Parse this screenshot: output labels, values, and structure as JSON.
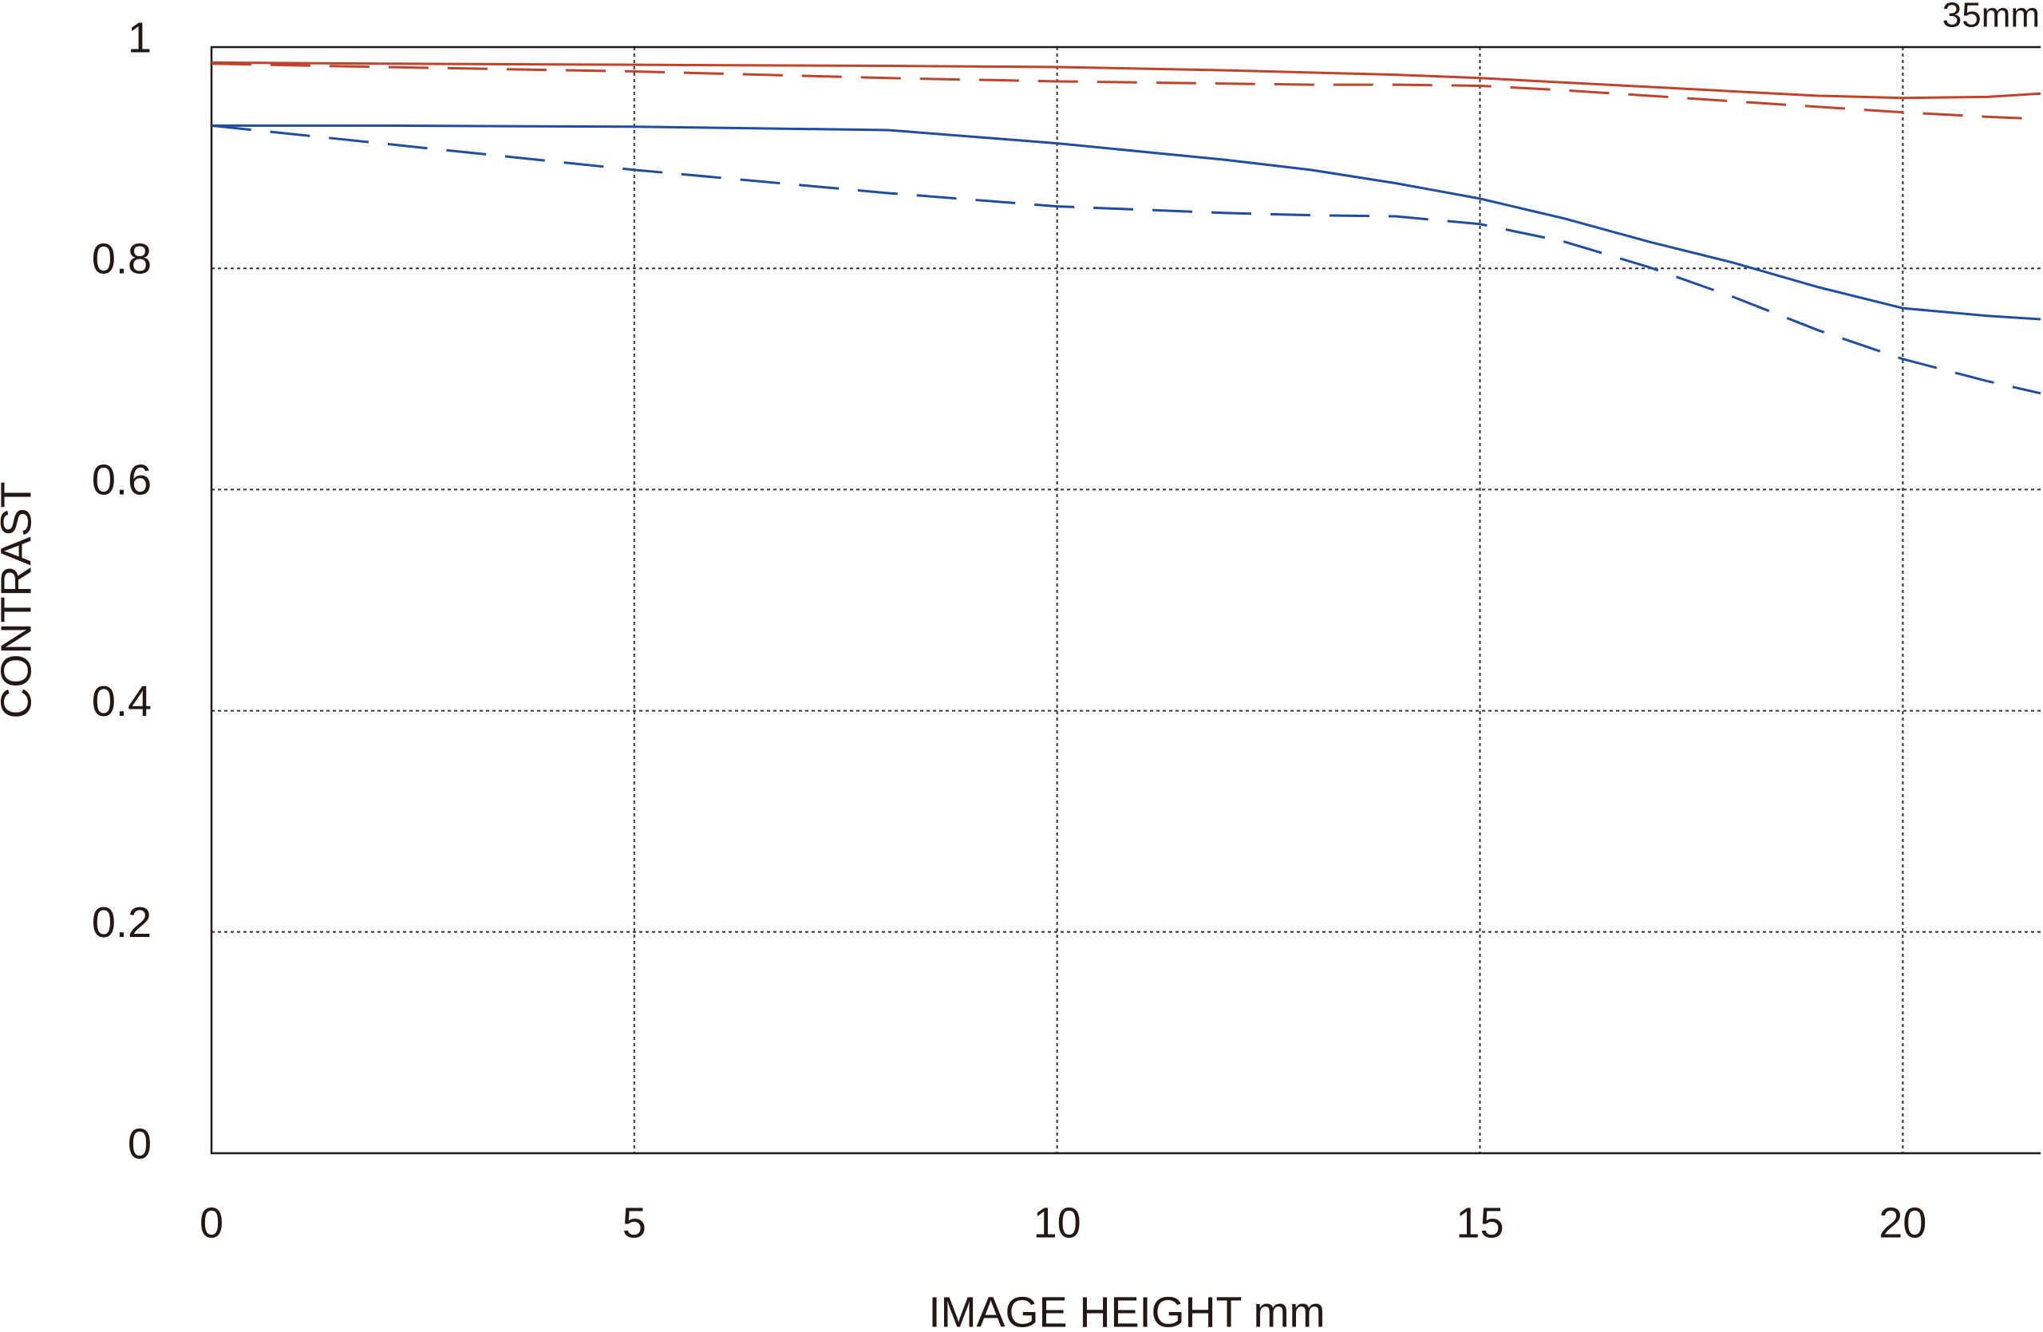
{
  "chart_data": {
    "type": "line",
    "annotation": "35mm",
    "x_label": "IMAGE HEIGHT  mm",
    "y_label": "CONTRAST",
    "x": [
      0,
      2,
      5,
      8,
      10,
      12,
      13,
      14,
      15,
      16,
      17,
      18,
      19,
      20,
      21,
      21.63
    ],
    "series": [
      {
        "color": "#c0432b",
        "style": "solid",
        "values": [
          0.986,
          0.985,
          0.984,
          0.983,
          0.982,
          0.979,
          0.977,
          0.975,
          0.972,
          0.968,
          0.964,
          0.96,
          0.956,
          0.954,
          0.955,
          0.958
        ]
      },
      {
        "color": "#c0432b",
        "style": "dashed",
        "values": [
          0.985,
          0.982,
          0.978,
          0.972,
          0.969,
          0.967,
          0.966,
          0.966,
          0.965,
          0.961,
          0.956,
          0.951,
          0.946,
          0.941,
          0.937,
          0.935
        ]
      },
      {
        "color": "#1f4ea1",
        "style": "solid",
        "values": [
          0.929,
          0.929,
          0.928,
          0.925,
          0.913,
          0.898,
          0.889,
          0.877,
          0.863,
          0.845,
          0.824,
          0.805,
          0.783,
          0.764,
          0.757,
          0.754
        ]
      },
      {
        "color": "#1f4ea1",
        "style": "dashed",
        "values": [
          0.929,
          0.913,
          0.889,
          0.868,
          0.856,
          0.85,
          0.848,
          0.847,
          0.84,
          0.824,
          0.801,
          0.774,
          0.744,
          0.718,
          0.698,
          0.687
        ]
      }
    ],
    "xlim": [
      0,
      21.63
    ],
    "xticks": [
      0,
      5,
      10,
      15,
      20
    ],
    "ylim": [
      0,
      1
    ],
    "yticks": [
      0,
      0.2,
      0.4,
      0.6,
      0.8,
      1
    ],
    "grid": true
  }
}
